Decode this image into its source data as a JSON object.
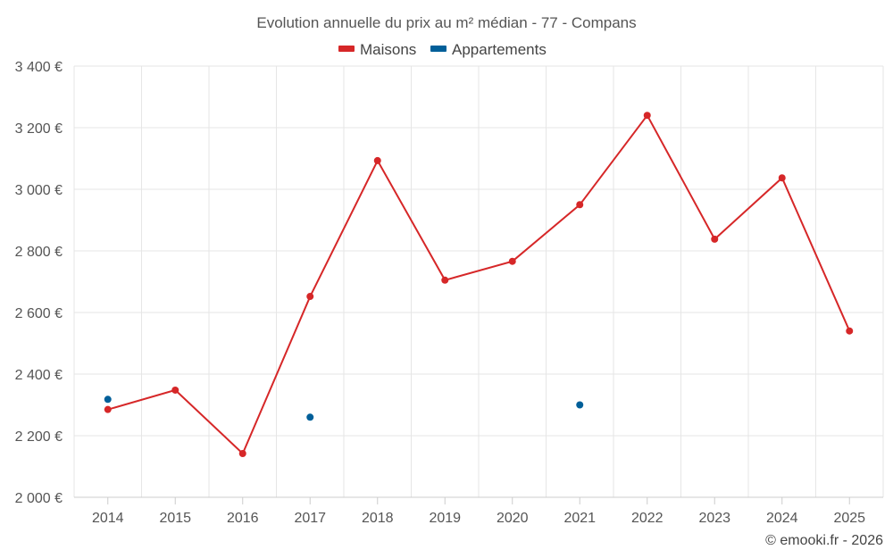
{
  "chart_data": {
    "type": "line",
    "title": "Evolution annuelle du prix au m² médian - 77 - Compans",
    "categories": [
      "2014",
      "2015",
      "2016",
      "2017",
      "2018",
      "2019",
      "2020",
      "2021",
      "2022",
      "2023",
      "2024",
      "2025"
    ],
    "series": [
      {
        "name": "Maisons",
        "color": "#d62728",
        "values": [
          2285,
          2348,
          2142,
          2652,
          3093,
          2705,
          2766,
          2950,
          3240,
          2838,
          3037,
          2540
        ]
      },
      {
        "name": "Appartements",
        "color": "#005f99",
        "values": [
          2318,
          null,
          null,
          2260,
          null,
          null,
          null,
          2300,
          null,
          null,
          null,
          null
        ]
      }
    ],
    "ylim": [
      2000,
      3400
    ],
    "yticks": [
      2000,
      2200,
      2400,
      2600,
      2800,
      3000,
      3200,
      3400
    ],
    "ytick_labels": [
      "2 000 €",
      "2 200 €",
      "2 400 €",
      "2 600 €",
      "2 800 €",
      "3 000 €",
      "3 200 €",
      "3 400 €"
    ],
    "grid": true,
    "legend_position": "top-center",
    "credit": "© emooki.fr - 2026"
  }
}
